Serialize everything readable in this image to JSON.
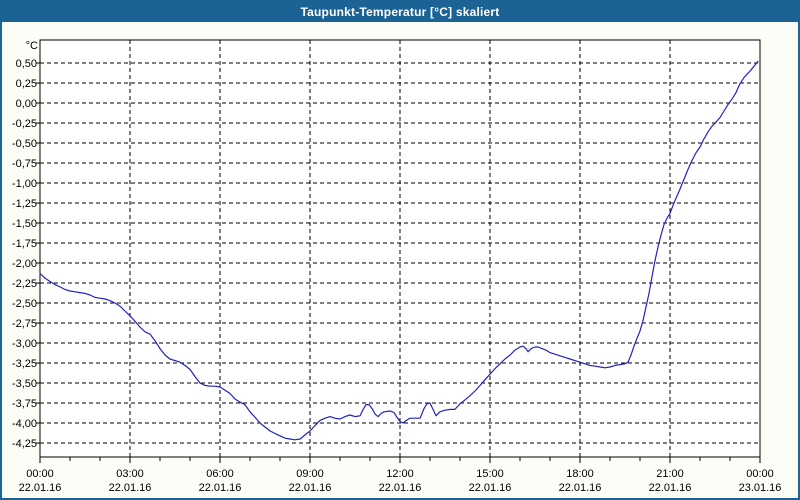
{
  "window": {
    "title": "Taupunkt-Temperatur [°C] skaliert"
  },
  "colors": {
    "frame_blue": "#1b6395",
    "title_text": "#ffffff",
    "panel_background": "#fdfdf8",
    "plot_background": "#ffffff",
    "curve_blue": "#2222c3",
    "grid_and_text": "#000000"
  },
  "chart_data": {
    "type": "line",
    "title": "Taupunkt-Temperatur [°C] skaliert",
    "y_unit": "°C",
    "grid": "dashed",
    "legend": "none",
    "ylim": [
      -4.43,
      0.79
    ],
    "xlim_hours": [
      0,
      24
    ],
    "y_ticks": [
      "0,50",
      "0,25",
      "0,00",
      "-0,25",
      "-0,50",
      "-0,75",
      "-1,00",
      "-1,25",
      "-1,50",
      "-1,75",
      "-2,00",
      "-2,25",
      "-2,50",
      "-2,75",
      "-3,00",
      "-3,25",
      "-3,50",
      "-3,75",
      "-4,00",
      "-4,25"
    ],
    "y_tick_values": [
      0.5,
      0.25,
      0.0,
      -0.25,
      -0.5,
      -0.75,
      -1.0,
      -1.25,
      -1.5,
      -1.75,
      -2.0,
      -2.25,
      -2.5,
      -2.75,
      -3.0,
      -3.25,
      -3.5,
      -3.75,
      -4.0,
      -4.25
    ],
    "x_tick_hours": [
      0,
      3,
      6,
      9,
      12,
      15,
      18,
      21,
      24
    ],
    "x_ticks": [
      {
        "time": "00:00",
        "date": "22.01.16"
      },
      {
        "time": "03:00",
        "date": "22.01.16"
      },
      {
        "time": "06:00",
        "date": "22.01.16"
      },
      {
        "time": "09:00",
        "date": "22.01.16"
      },
      {
        "time": "12:00",
        "date": "22.01.16"
      },
      {
        "time": "15:00",
        "date": "22.01.16"
      },
      {
        "time": "18:00",
        "date": "22.01.16"
      },
      {
        "time": "21:00",
        "date": "22.01.16"
      },
      {
        "time": "00:00",
        "date": "23.01.16"
      }
    ],
    "series": [
      {
        "name": "Taupunkt-Temperatur",
        "unit": "°C",
        "points": [
          [
            0.0,
            -2.13
          ],
          [
            0.17,
            -2.19
          ],
          [
            0.33,
            -2.23
          ],
          [
            0.5,
            -2.27
          ],
          [
            0.67,
            -2.3
          ],
          [
            0.83,
            -2.33
          ],
          [
            1.0,
            -2.35
          ],
          [
            1.17,
            -2.36
          ],
          [
            1.33,
            -2.37
          ],
          [
            1.5,
            -2.38
          ],
          [
            1.67,
            -2.4
          ],
          [
            1.83,
            -2.43
          ],
          [
            2.0,
            -2.44
          ],
          [
            2.17,
            -2.45
          ],
          [
            2.33,
            -2.47
          ],
          [
            2.5,
            -2.5
          ],
          [
            2.67,
            -2.54
          ],
          [
            2.83,
            -2.6
          ],
          [
            3.0,
            -2.66
          ],
          [
            3.17,
            -2.73
          ],
          [
            3.33,
            -2.8
          ],
          [
            3.5,
            -2.86
          ],
          [
            3.67,
            -2.89
          ],
          [
            3.83,
            -2.97
          ],
          [
            4.0,
            -3.07
          ],
          [
            4.17,
            -3.15
          ],
          [
            4.33,
            -3.2
          ],
          [
            4.5,
            -3.22
          ],
          [
            4.67,
            -3.24
          ],
          [
            4.83,
            -3.28
          ],
          [
            5.0,
            -3.33
          ],
          [
            5.17,
            -3.42
          ],
          [
            5.33,
            -3.5
          ],
          [
            5.5,
            -3.53
          ],
          [
            5.67,
            -3.54
          ],
          [
            5.83,
            -3.54
          ],
          [
            6.0,
            -3.55
          ],
          [
            6.17,
            -3.59
          ],
          [
            6.33,
            -3.63
          ],
          [
            6.5,
            -3.7
          ],
          [
            6.67,
            -3.74
          ],
          [
            6.83,
            -3.77
          ],
          [
            7.0,
            -3.86
          ],
          [
            7.17,
            -3.93
          ],
          [
            7.33,
            -4.0
          ],
          [
            7.5,
            -4.05
          ],
          [
            7.67,
            -4.1
          ],
          [
            7.83,
            -4.13
          ],
          [
            8.0,
            -4.16
          ],
          [
            8.17,
            -4.19
          ],
          [
            8.33,
            -4.2
          ],
          [
            8.5,
            -4.21
          ],
          [
            8.67,
            -4.2
          ],
          [
            8.83,
            -4.15
          ],
          [
            9.0,
            -4.1
          ],
          [
            9.17,
            -4.03
          ],
          [
            9.33,
            -3.97
          ],
          [
            9.5,
            -3.94
          ],
          [
            9.67,
            -3.92
          ],
          [
            9.83,
            -3.94
          ],
          [
            10.0,
            -3.95
          ],
          [
            10.17,
            -3.92
          ],
          [
            10.33,
            -3.9
          ],
          [
            10.5,
            -3.92
          ],
          [
            10.67,
            -3.91
          ],
          [
            10.77,
            -3.83
          ],
          [
            10.87,
            -3.77
          ],
          [
            10.97,
            -3.77
          ],
          [
            11.07,
            -3.82
          ],
          [
            11.17,
            -3.89
          ],
          [
            11.27,
            -3.92
          ],
          [
            11.37,
            -3.88
          ],
          [
            11.47,
            -3.86
          ],
          [
            11.67,
            -3.85
          ],
          [
            11.8,
            -3.87
          ],
          [
            11.9,
            -3.93
          ],
          [
            12.0,
            -3.98
          ],
          [
            12.1,
            -4.0
          ],
          [
            12.2,
            -3.97
          ],
          [
            12.33,
            -3.94
          ],
          [
            12.5,
            -3.94
          ],
          [
            12.67,
            -3.94
          ],
          [
            12.8,
            -3.82
          ],
          [
            12.9,
            -3.76
          ],
          [
            13.0,
            -3.75
          ],
          [
            13.1,
            -3.83
          ],
          [
            13.2,
            -3.91
          ],
          [
            13.33,
            -3.86
          ],
          [
            13.5,
            -3.84
          ],
          [
            13.67,
            -3.83
          ],
          [
            13.83,
            -3.83
          ],
          [
            14.0,
            -3.76
          ],
          [
            14.17,
            -3.71
          ],
          [
            14.33,
            -3.66
          ],
          [
            14.5,
            -3.6
          ],
          [
            14.67,
            -3.53
          ],
          [
            14.83,
            -3.46
          ],
          [
            15.0,
            -3.39
          ],
          [
            15.17,
            -3.32
          ],
          [
            15.33,
            -3.26
          ],
          [
            15.5,
            -3.2
          ],
          [
            15.67,
            -3.15
          ],
          [
            15.83,
            -3.09
          ],
          [
            16.0,
            -3.05
          ],
          [
            16.1,
            -3.04
          ],
          [
            16.2,
            -3.07
          ],
          [
            16.27,
            -3.11
          ],
          [
            16.37,
            -3.07
          ],
          [
            16.5,
            -3.05
          ],
          [
            16.6,
            -3.05
          ],
          [
            16.73,
            -3.07
          ],
          [
            16.87,
            -3.09
          ],
          [
            17.0,
            -3.12
          ],
          [
            17.17,
            -3.14
          ],
          [
            17.33,
            -3.16
          ],
          [
            17.5,
            -3.18
          ],
          [
            17.67,
            -3.2
          ],
          [
            17.83,
            -3.22
          ],
          [
            18.0,
            -3.24
          ],
          [
            18.17,
            -3.26
          ],
          [
            18.33,
            -3.28
          ],
          [
            18.5,
            -3.29
          ],
          [
            18.67,
            -3.3
          ],
          [
            18.83,
            -3.31
          ],
          [
            19.0,
            -3.3
          ],
          [
            19.17,
            -3.28
          ],
          [
            19.33,
            -3.27
          ],
          [
            19.5,
            -3.26
          ],
          [
            19.6,
            -3.24
          ],
          [
            19.7,
            -3.15
          ],
          [
            19.8,
            -3.04
          ],
          [
            19.9,
            -2.94
          ],
          [
            20.0,
            -2.85
          ],
          [
            20.1,
            -2.72
          ],
          [
            20.2,
            -2.55
          ],
          [
            20.3,
            -2.38
          ],
          [
            20.4,
            -2.17
          ],
          [
            20.5,
            -1.97
          ],
          [
            20.6,
            -1.8
          ],
          [
            20.7,
            -1.65
          ],
          [
            20.8,
            -1.52
          ],
          [
            20.9,
            -1.44
          ],
          [
            21.0,
            -1.38
          ],
          [
            21.1,
            -1.28
          ],
          [
            21.2,
            -1.19
          ],
          [
            21.33,
            -1.08
          ],
          [
            21.47,
            -0.95
          ],
          [
            21.6,
            -0.83
          ],
          [
            21.73,
            -0.72
          ],
          [
            21.87,
            -0.62
          ],
          [
            22.0,
            -0.55
          ],
          [
            22.13,
            -0.45
          ],
          [
            22.27,
            -0.36
          ],
          [
            22.4,
            -0.29
          ],
          [
            22.53,
            -0.24
          ],
          [
            22.67,
            -0.18
          ],
          [
            22.8,
            -0.1
          ],
          [
            22.93,
            -0.02
          ],
          [
            23.07,
            0.05
          ],
          [
            23.2,
            0.13
          ],
          [
            23.33,
            0.24
          ],
          [
            23.47,
            0.32
          ],
          [
            23.57,
            0.36
          ],
          [
            23.67,
            0.4
          ],
          [
            23.8,
            0.46
          ],
          [
            23.93,
            0.52
          ]
        ]
      }
    ]
  }
}
